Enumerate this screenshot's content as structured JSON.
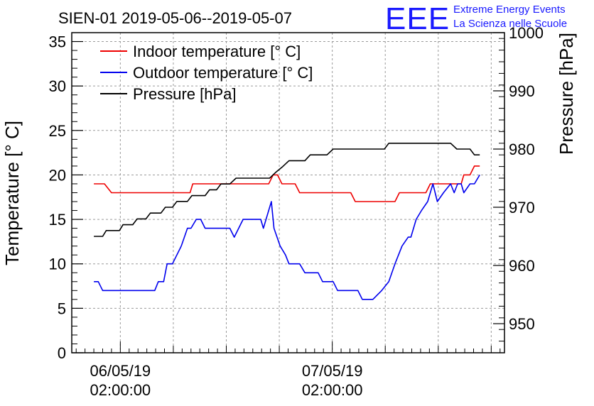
{
  "chart_data": {
    "type": "line",
    "title": "SIEN-01 2019-05-06--2019-05-07",
    "ylabel": "Temperature [° C]",
    "y2label": "Pressure [hPa]",
    "ylim": [
      0,
      36
    ],
    "y2lim": [
      945,
      1000
    ],
    "yticks": [
      0,
      5,
      10,
      15,
      20,
      25,
      30,
      35
    ],
    "y2ticks": [
      950,
      960,
      970,
      980,
      990,
      1000
    ],
    "xlim_hours": [
      -5.5,
      43.5
    ],
    "xticks": [
      {
        "line1": "06/05/19",
        "line2": "02:00:00"
      },
      {
        "line1": "07/05/19",
        "line2": "02:00:00"
      }
    ],
    "grid": true,
    "legend_position": "top-left",
    "series": [
      {
        "name": "Indoor temperature [° C]",
        "axis": "left",
        "color": "#ee0000",
        "points": [
          [
            -3.0,
            19
          ],
          [
            -1.8,
            19
          ],
          [
            -1.0,
            18
          ],
          [
            7.9,
            18
          ],
          [
            8.2,
            19
          ],
          [
            16.8,
            19
          ],
          [
            17.3,
            20
          ],
          [
            17.8,
            20
          ],
          [
            18.3,
            19
          ],
          [
            19.8,
            19
          ],
          [
            20.3,
            18
          ],
          [
            26.1,
            18
          ],
          [
            26.6,
            17
          ],
          [
            31.1,
            17
          ],
          [
            31.6,
            18
          ],
          [
            34.6,
            18
          ],
          [
            35.1,
            19
          ],
          [
            38.6,
            19
          ],
          [
            38.9,
            20
          ],
          [
            39.6,
            20
          ],
          [
            40.1,
            21
          ],
          [
            40.7,
            21
          ]
        ]
      },
      {
        "name": "Outdoor temperature [° C]",
        "axis": "left",
        "color": "#0000ee",
        "points": [
          [
            -3.0,
            8
          ],
          [
            -2.5,
            8
          ],
          [
            -2.0,
            7
          ],
          [
            3.9,
            7
          ],
          [
            4.3,
            8
          ],
          [
            4.9,
            8
          ],
          [
            5.3,
            10
          ],
          [
            5.9,
            10
          ],
          [
            6.9,
            12
          ],
          [
            7.6,
            14
          ],
          [
            8.0,
            14
          ],
          [
            8.6,
            15
          ],
          [
            9.1,
            15
          ],
          [
            9.6,
            14
          ],
          [
            12.4,
            14
          ],
          [
            12.9,
            13
          ],
          [
            13.4,
            14
          ],
          [
            13.9,
            15
          ],
          [
            15.4,
            15
          ],
          [
            15.9,
            15
          ],
          [
            16.2,
            14
          ],
          [
            16.5,
            15
          ],
          [
            17.1,
            17
          ],
          [
            17.4,
            14
          ],
          [
            18.1,
            12
          ],
          [
            18.7,
            11
          ],
          [
            19.1,
            10
          ],
          [
            20.3,
            10
          ],
          [
            20.9,
            9
          ],
          [
            22.4,
            9
          ],
          [
            22.9,
            8
          ],
          [
            24.1,
            8
          ],
          [
            24.6,
            7
          ],
          [
            26.9,
            7
          ],
          [
            27.4,
            6
          ],
          [
            28.6,
            6
          ],
          [
            29.6,
            7
          ],
          [
            30.4,
            8
          ],
          [
            31.1,
            10
          ],
          [
            31.9,
            12
          ],
          [
            32.6,
            13
          ],
          [
            32.9,
            13
          ],
          [
            33.5,
            15
          ],
          [
            34.1,
            16
          ],
          [
            34.8,
            17
          ],
          [
            35.4,
            19
          ],
          [
            35.9,
            17
          ],
          [
            36.6,
            18
          ],
          [
            37.4,
            19
          ],
          [
            37.8,
            18
          ],
          [
            38.2,
            19
          ],
          [
            38.6,
            19
          ],
          [
            38.9,
            18
          ],
          [
            39.6,
            19
          ],
          [
            40.1,
            19
          ],
          [
            40.7,
            20
          ]
        ]
      },
      {
        "name": "Pressure [hPa]",
        "axis": "right",
        "color": "#000000",
        "points": [
          [
            -3.0,
            965
          ],
          [
            -2.0,
            965
          ],
          [
            -1.6,
            966
          ],
          [
            -0.1,
            966
          ],
          [
            0.3,
            967
          ],
          [
            1.4,
            967
          ],
          [
            1.9,
            968
          ],
          [
            2.9,
            968
          ],
          [
            3.4,
            969
          ],
          [
            4.6,
            969
          ],
          [
            5.1,
            970
          ],
          [
            5.9,
            970
          ],
          [
            6.4,
            971
          ],
          [
            7.6,
            971
          ],
          [
            8.1,
            972
          ],
          [
            9.6,
            972
          ],
          [
            10.1,
            973
          ],
          [
            10.9,
            973
          ],
          [
            11.4,
            974
          ],
          [
            12.4,
            974
          ],
          [
            13.1,
            975
          ],
          [
            16.9,
            975
          ],
          [
            17.6,
            976
          ],
          [
            18.4,
            977
          ],
          [
            19.1,
            978
          ],
          [
            20.9,
            978
          ],
          [
            21.5,
            979
          ],
          [
            23.4,
            979
          ],
          [
            24.1,
            980
          ],
          [
            27.1,
            980
          ],
          [
            27.4,
            980
          ],
          [
            29.9,
            980
          ],
          [
            30.4,
            981
          ],
          [
            37.4,
            981
          ],
          [
            38.1,
            980
          ],
          [
            39.6,
            980
          ],
          [
            40.1,
            979
          ],
          [
            40.7,
            979
          ]
        ]
      }
    ]
  },
  "branding": {
    "logo_text": "EEE",
    "line1": "Extreme Energy Events",
    "line2": "La Scienza nelle Scuole"
  }
}
